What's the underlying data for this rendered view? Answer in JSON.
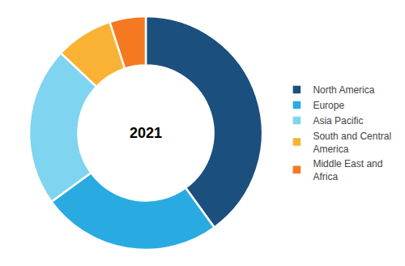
{
  "chart_data": {
    "type": "donut",
    "categories": [
      "North America",
      "Europe",
      "Asia Pacific",
      "South and Central\nAmerica",
      "Middle East and\nAfrica"
    ],
    "values": [
      40,
      25,
      22,
      8,
      5
    ],
    "colors": [
      "#1b4f7e",
      "#29abe2",
      "#7fd4f0",
      "#f9b233",
      "#f47920"
    ],
    "annotation": "2021",
    "legend": "right"
  }
}
